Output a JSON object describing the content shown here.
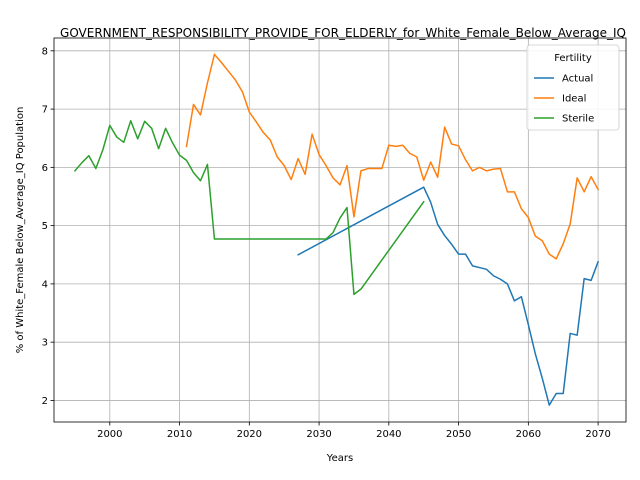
{
  "chart_data": {
    "type": "line",
    "title": "GOVERNMENT_RESPONSIBILITY_PROVIDE_FOR_ELDERLY_for_White_Female_Below_Average_IQ",
    "xlabel": "Years",
    "ylabel": "% of White_Female Below_Average_IQ Population",
    "xlim": [
      1992,
      2074
    ],
    "ylim": [
      1.63,
      8.22
    ],
    "xticks": [
      2000,
      2010,
      2020,
      2030,
      2040,
      2050,
      2060,
      2070
    ],
    "yticks": [
      2,
      3,
      4,
      5,
      6,
      7,
      8
    ],
    "grid": true,
    "legend": {
      "title": "Fertility",
      "position": "top-right",
      "entries": [
        "Actual",
        "Ideal",
        "Sterile"
      ]
    },
    "series": [
      {
        "name": "Actual",
        "color": "#1f77b4",
        "x": [
          2027,
          2045,
          2046,
          2047,
          2048,
          2049,
          2050,
          2051,
          2052,
          2053,
          2054,
          2055,
          2056,
          2057,
          2058,
          2059,
          2060,
          2061,
          2062,
          2063,
          2064,
          2065,
          2066,
          2067,
          2068,
          2069,
          2070
        ],
        "y": [
          4.5,
          5.66,
          5.4,
          5.02,
          4.83,
          4.68,
          4.51,
          4.51,
          4.31,
          4.28,
          4.25,
          4.14,
          4.08,
          4.0,
          3.71,
          3.78,
          3.3,
          2.8,
          2.38,
          1.92,
          2.12,
          2.12,
          3.15,
          3.12,
          4.09,
          4.06,
          4.38
        ]
      },
      {
        "name": "Ideal",
        "color": "#ff7f0e",
        "x": [
          2011,
          2012,
          2013,
          2014,
          2015,
          2016,
          2017,
          2018,
          2019,
          2020,
          2021,
          2022,
          2023,
          2024,
          2025,
          2026,
          2027,
          2028,
          2029,
          2030,
          2031,
          2032,
          2033,
          2034,
          2035,
          2036,
          2037,
          2038,
          2039,
          2040,
          2041,
          2042,
          2043,
          2044,
          2045,
          2046,
          2047,
          2048,
          2049,
          2050,
          2051,
          2052,
          2053,
          2054,
          2055,
          2056,
          2057,
          2058,
          2059,
          2060,
          2061,
          2062,
          2063,
          2064,
          2065,
          2066,
          2067,
          2068,
          2069,
          2070
        ],
        "y": [
          6.36,
          7.08,
          6.9,
          7.45,
          7.94,
          7.8,
          7.65,
          7.5,
          7.3,
          6.95,
          6.78,
          6.6,
          6.47,
          6.18,
          6.03,
          5.79,
          6.15,
          5.88,
          6.57,
          6.22,
          6.03,
          5.82,
          5.7,
          6.03,
          5.15,
          5.94,
          5.98,
          5.98,
          5.98,
          6.38,
          6.36,
          6.38,
          6.24,
          6.18,
          5.78,
          6.09,
          5.83,
          6.69,
          6.4,
          6.37,
          6.13,
          5.94,
          6.0,
          5.94,
          5.97,
          5.98,
          5.58,
          5.58,
          5.29,
          5.14,
          4.82,
          4.74,
          4.51,
          4.43,
          4.69,
          5.03,
          5.82,
          5.58,
          5.84,
          5.62
        ]
      },
      {
        "name": "Sterile",
        "color": "#2ca02c",
        "x": [
          1995,
          1996,
          1997,
          1998,
          1999,
          2000,
          2001,
          2002,
          2003,
          2004,
          2005,
          2006,
          2007,
          2008,
          2009,
          2010,
          2011,
          2012,
          2013,
          2014,
          2015,
          2030,
          2031,
          2032,
          2033,
          2034,
          2035,
          2036,
          2045
        ],
        "y": [
          5.94,
          6.08,
          6.2,
          5.98,
          6.3,
          6.72,
          6.52,
          6.43,
          6.8,
          6.49,
          6.79,
          6.67,
          6.32,
          6.67,
          6.42,
          6.21,
          6.12,
          5.91,
          5.77,
          6.05,
          4.77,
          4.77,
          4.77,
          4.88,
          5.13,
          5.31,
          3.82,
          3.91,
          5.41
        ]
      }
    ]
  }
}
